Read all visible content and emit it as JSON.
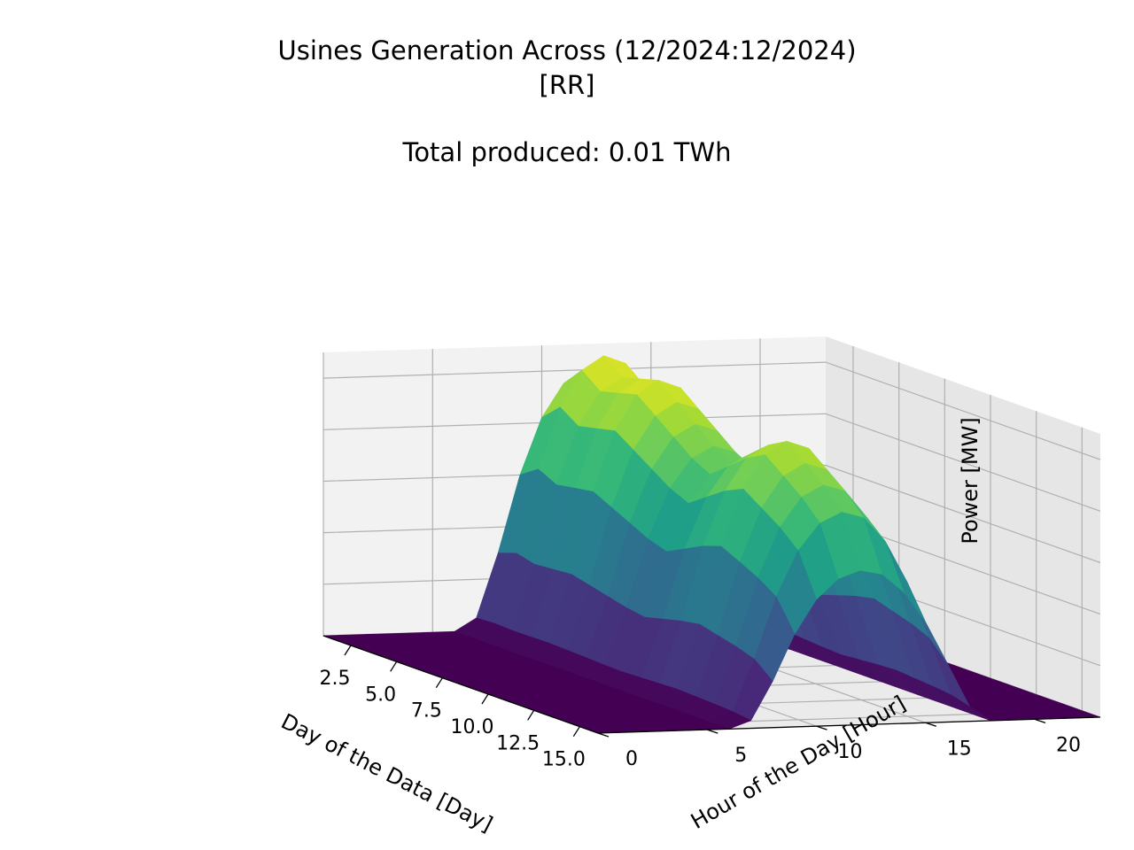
{
  "chart_data": {
    "type": "surface3d",
    "title_line1": "Usines Generation Across (12/2024:12/2024)",
    "title_line2": "[RR]",
    "subtitle": "Total produced: 0.01 TWh",
    "xlabel": "Day of the Data [Day]",
    "ylabel": "Hour of the Day [Hour]",
    "zlabel": "Power [MW]",
    "xlim": [
      1,
      16
    ],
    "ylim": [
      0,
      23
    ],
    "zlim": [
      0,
      55
    ],
    "x_ticks": [
      "2.5",
      "5.0",
      "7.5",
      "10.0",
      "12.5",
      "15.0"
    ],
    "x_tick_values": [
      2.5,
      5.0,
      7.5,
      10.0,
      12.5,
      15.0
    ],
    "y_ticks": [
      "0",
      "5",
      "10",
      "15",
      "20"
    ],
    "y_tick_values": [
      0,
      5,
      10,
      15,
      20
    ],
    "z_ticks": [
      "0",
      "10",
      "20",
      "30",
      "40",
      "50"
    ],
    "z_tick_values": [
      0,
      10,
      20,
      30,
      40,
      50
    ],
    "colormap": "viridis",
    "days": [
      1,
      2,
      3,
      4,
      5,
      6,
      7,
      8,
      9,
      10,
      11,
      12,
      13,
      14,
      15,
      16
    ],
    "hours": [
      0,
      1,
      2,
      3,
      4,
      5,
      6,
      7,
      8,
      9,
      10,
      11,
      12,
      13,
      14,
      15,
      16,
      17,
      18,
      19,
      20,
      21,
      22,
      23
    ],
    "daily_profile_shape": [
      0,
      0,
      0,
      0,
      0,
      0,
      0,
      0.05,
      0.3,
      0.6,
      0.82,
      0.95,
      1.0,
      0.97,
      0.85,
      0.65,
      0.38,
      0.1,
      0,
      0,
      0,
      0,
      0,
      0
    ],
    "daily_peak_mw": [
      50,
      54,
      51,
      52,
      53,
      50,
      47,
      44,
      42,
      45,
      48,
      50,
      47,
      44,
      40,
      30
    ]
  },
  "colors": {
    "pane_left": "#f2f2f2",
    "pane_right": "#e6e6e6",
    "pane_floor": "#ebebeb",
    "grid": "#b0b0b0"
  }
}
